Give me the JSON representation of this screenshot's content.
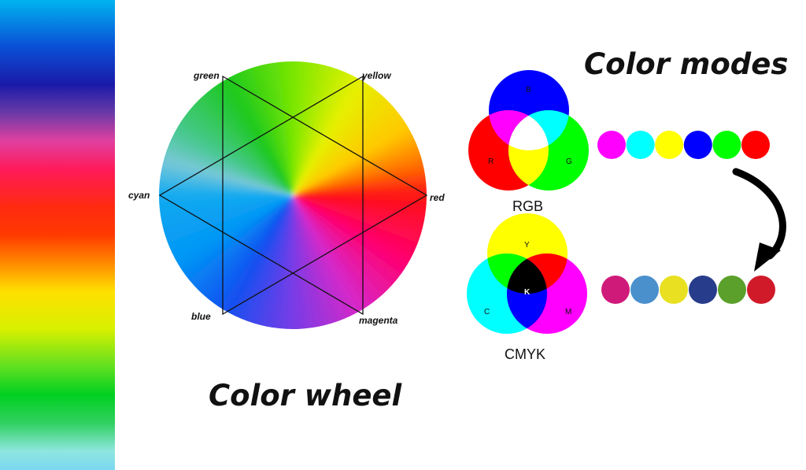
{
  "wheel": {
    "title": "Color wheel",
    "labels": {
      "green": "green",
      "yellow": "yellow",
      "cyan": "cyan",
      "red": "red",
      "blue": "blue",
      "magenta": "magenta"
    }
  },
  "modes": {
    "title": "Color modes",
    "rgb": {
      "name": "RGB",
      "letters": {
        "b": "B",
        "r": "R",
        "g": "G"
      },
      "swatches": [
        "#ff00ff",
        "#00ffff",
        "#ffff00",
        "#0000ff",
        "#00ff00",
        "#ff0000"
      ]
    },
    "cmyk": {
      "name": "CMYK",
      "letters": {
        "y": "Y",
        "c": "C",
        "m": "M",
        "k": "K"
      },
      "swatches": [
        "#d01a7a",
        "#4a90cc",
        "#e8e020",
        "#283c8c",
        "#5aa02a",
        "#d01a2a"
      ]
    }
  },
  "colors": {
    "rgb_red": "#ff0000",
    "rgb_green": "#00ff00",
    "rgb_blue": "#0000ff",
    "cmy_cyan": "#00ffff",
    "cmy_magenta": "#ff00ff",
    "cmy_yellow": "#ffff00"
  }
}
